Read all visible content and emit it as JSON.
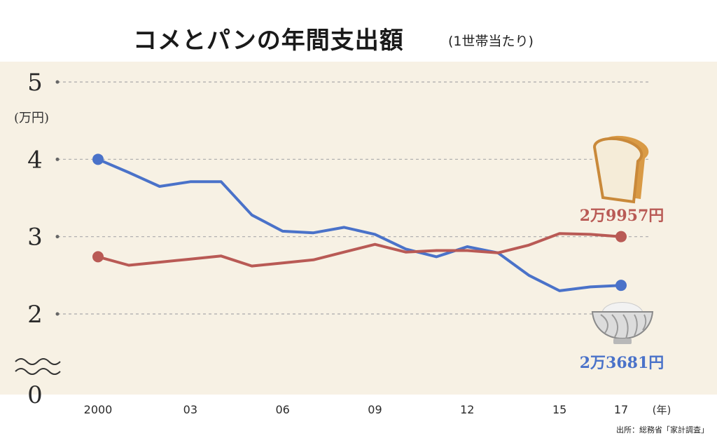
{
  "title": "コメとパンの年間支出額",
  "subtitle": "(1世帯当たり)",
  "source": "出所：総務省「家計調査」",
  "chart_data": {
    "type": "line",
    "ylabel": "(万円)",
    "xunit": "(年)",
    "ylim": [
      2,
      5
    ],
    "y_ticks": [
      "5",
      "4",
      "3",
      "2",
      "0"
    ],
    "y_tick_values": [
      5,
      4,
      3,
      2,
      0
    ],
    "axis_break": true,
    "grid": "horizontal-dashed",
    "x": [
      2000,
      2001,
      2002,
      2003,
      2004,
      2005,
      2006,
      2007,
      2008,
      2009,
      2010,
      2011,
      2012,
      2013,
      2014,
      2015,
      2016,
      2017
    ],
    "x_tick_labels": [
      "2000",
      "03",
      "06",
      "09",
      "12",
      "15",
      "17"
    ],
    "x_tick_values": [
      2000,
      2003,
      2006,
      2009,
      2012,
      2015,
      2017
    ],
    "series": [
      {
        "color": "#4a72c9",
        "values": [
          4.0,
          3.83,
          3.65,
          3.71,
          3.71,
          3.28,
          3.07,
          3.05,
          3.12,
          3.03,
          2.84,
          2.74,
          2.87,
          2.79,
          2.5,
          2.3,
          2.35,
          2.37
        ],
        "end_label": "2万3681円",
        "icon": "rice-bowl-icon"
      },
      {
        "color": "#b95a55",
        "values": [
          2.74,
          2.63,
          2.67,
          2.71,
          2.75,
          2.62,
          2.66,
          2.7,
          2.8,
          2.9,
          2.8,
          2.82,
          2.82,
          2.79,
          2.89,
          3.04,
          3.03,
          3.0
        ],
        "end_label": "2万9957円",
        "icon": "bread-icon"
      }
    ]
  }
}
